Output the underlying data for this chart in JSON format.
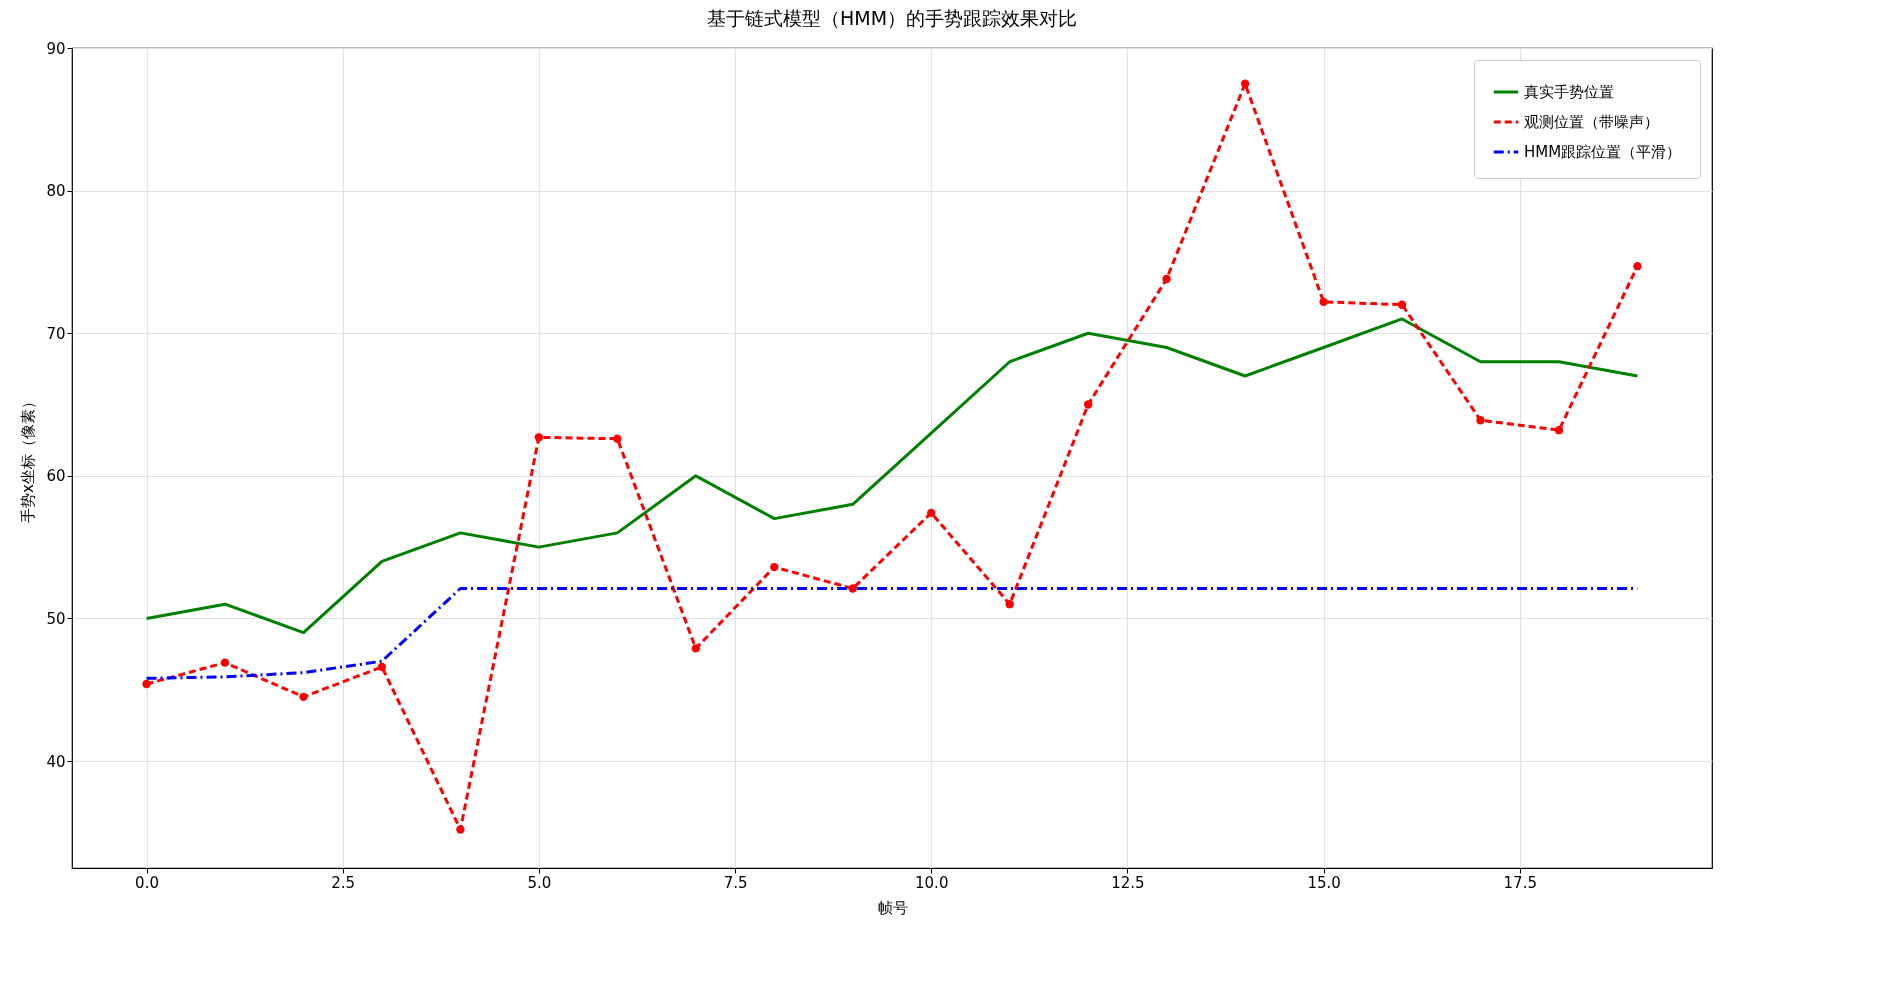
{
  "chart_data": {
    "type": "line",
    "title": "基于链式模型（HMM）的手势跟踪效果对比",
    "xlabel": "帧号",
    "ylabel": "手势x坐标（像素）",
    "x": [
      0,
      1,
      2,
      3,
      4,
      5,
      6,
      7,
      8,
      9,
      10,
      11,
      12,
      13,
      14,
      15,
      16,
      17,
      18,
      19
    ],
    "series": [
      {
        "name": "真实手势位置",
        "color": "#008000",
        "line_style": "solid",
        "marker": "none",
        "values": [
          50,
          51,
          49,
          54,
          56,
          55,
          56,
          60,
          57,
          58,
          63,
          68,
          70,
          69,
          67,
          69,
          71,
          68,
          68,
          67
        ]
      },
      {
        "name": "观测位置（带噪声）",
        "color": "#ff0000",
        "line_style": "dashed",
        "marker": "circle",
        "values": [
          45.4,
          46.9,
          44.5,
          46.6,
          35.2,
          62.7,
          62.6,
          47.9,
          53.6,
          52.1,
          57.4,
          51.0,
          65.0,
          73.8,
          87.5,
          72.2,
          72.0,
          63.9,
          63.2,
          74.7
        ]
      },
      {
        "name": "HMM跟踪位置（平滑）",
        "color": "#0000ff",
        "line_style": "dashdot",
        "marker": "none",
        "values": [
          45.8,
          45.9,
          46.2,
          47.0,
          52.1,
          52.1,
          52.1,
          52.1,
          52.1,
          52.1,
          52.1,
          52.1,
          52.1,
          52.1,
          52.1,
          52.1,
          52.1,
          52.1,
          52.1,
          52.1
        ]
      }
    ],
    "xlim": [
      -0.95,
      19.95
    ],
    "ylim": [
      32.5,
      90
    ],
    "xticks": [
      {
        "value": 0,
        "label": "0.0"
      },
      {
        "value": 2.5,
        "label": "2.5"
      },
      {
        "value": 5,
        "label": "5.0"
      },
      {
        "value": 7.5,
        "label": "7.5"
      },
      {
        "value": 10,
        "label": "10.0"
      },
      {
        "value": 12.5,
        "label": "12.5"
      },
      {
        "value": 15,
        "label": "15.0"
      },
      {
        "value": 17.5,
        "label": "17.5"
      }
    ],
    "yticks": [
      40,
      50,
      60,
      70,
      80,
      90
    ],
    "grid": true,
    "legend": "top right"
  }
}
